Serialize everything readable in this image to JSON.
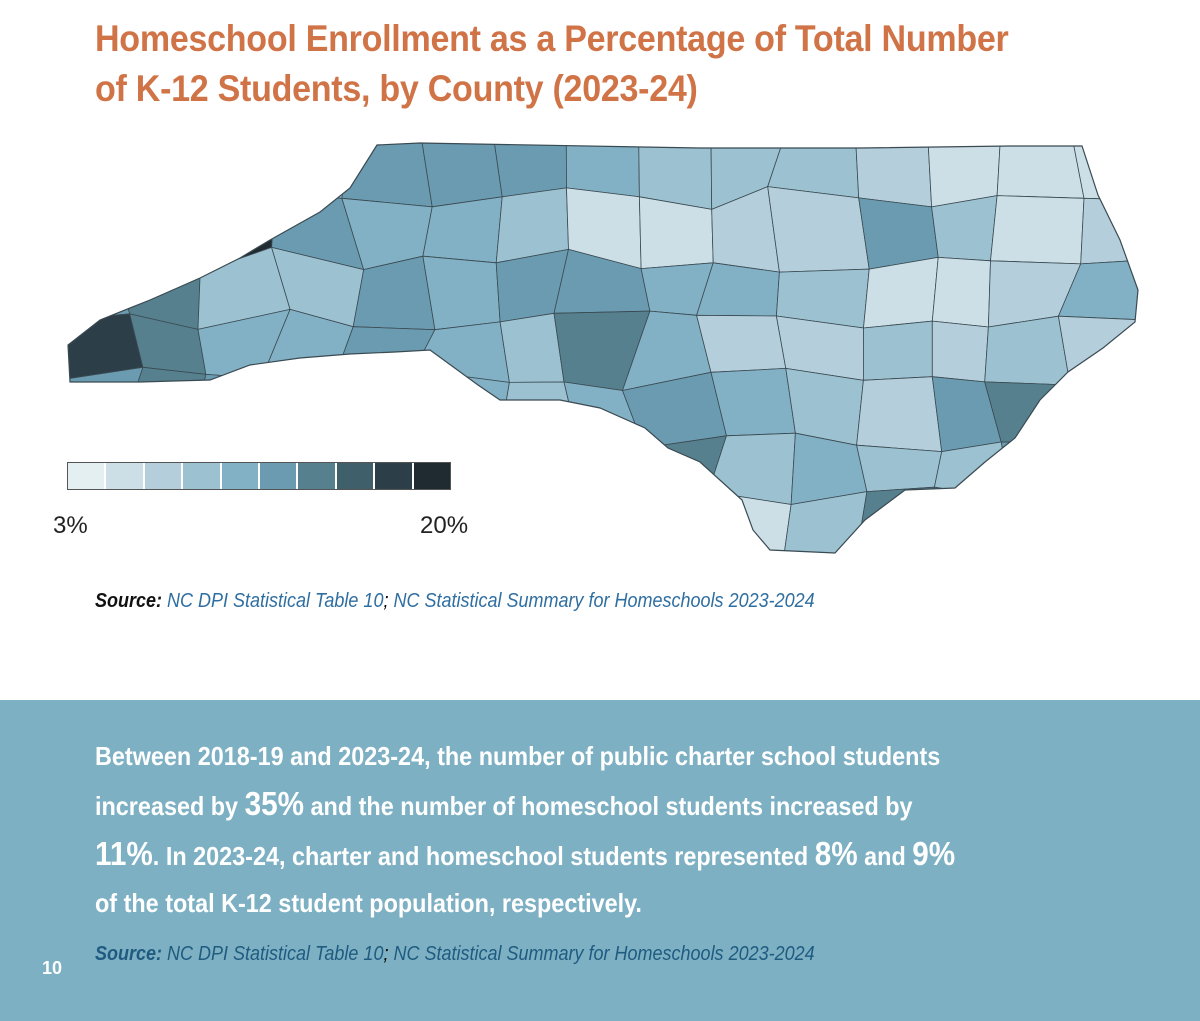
{
  "title": {
    "line1": "Homeschool Enrollment as a Percentage of Total Number",
    "line2": "of K-12 Students, by County (2023-24)"
  },
  "legend": {
    "min_label": "3%",
    "max_label": "20%",
    "colors": [
      "#e4eff2",
      "#ccdfe6",
      "#b4cfdb",
      "#9cc1d0",
      "#82b0c4",
      "#6b9bb0",
      "#56808e",
      "#3f5f6b",
      "#2c3f49",
      "#1f2b31"
    ]
  },
  "source_top": {
    "label": "Source:",
    "link1": " NC DPI Statistical Table 10",
    "sep": ";",
    "link2": " NC Statistical Summary for Homeschools 2023-2024"
  },
  "summary": {
    "line1": "Between 2018-19 and 2023-24, the number of public charter school students",
    "line2_a": "increased by ",
    "line2_num": "35%",
    "line2_b": " and the number of homeschool students increased by",
    "line3_num": "11%",
    "line3_a": ". In 2023-24, charter and homeschool students represented ",
    "line3_num2": "8%",
    "line3_b": " and ",
    "line3_num3": "9%",
    "line4": "of the total K-12 student population, respectively."
  },
  "source_bottom": {
    "label": "Source:",
    "link1": " NC DPI Statistical Table 10",
    "sep": ";",
    "link2": " NC Statistical Summary for Homeschools 2023-2024"
  },
  "page_number": "10",
  "map_data": {
    "county_shade_levels": [
      6,
      7,
      4,
      3,
      5,
      5,
      5,
      4,
      3,
      3,
      3,
      2,
      1,
      1,
      1,
      9,
      8,
      9,
      5,
      4,
      4,
      3,
      1,
      1,
      2,
      2,
      5,
      3,
      1,
      2,
      5,
      6,
      3,
      3,
      5,
      4,
      5,
      5,
      4,
      4,
      3,
      1,
      1,
      2,
      4,
      8,
      6,
      4,
      4,
      5,
      4,
      3,
      6,
      4,
      2,
      2,
      3,
      2,
      3,
      2,
      5,
      6,
      5,
      6,
      3,
      4,
      3,
      4,
      5,
      4,
      3,
      2,
      5,
      6,
      9,
      6,
      5,
      3,
      4,
      6,
      4,
      2,
      4,
      6,
      3,
      4,
      3,
      3,
      5,
      4,
      9,
      6,
      3,
      4,
      3,
      4,
      2,
      1,
      3,
      1,
      3,
      6,
      5,
      3,
      4
    ]
  }
}
